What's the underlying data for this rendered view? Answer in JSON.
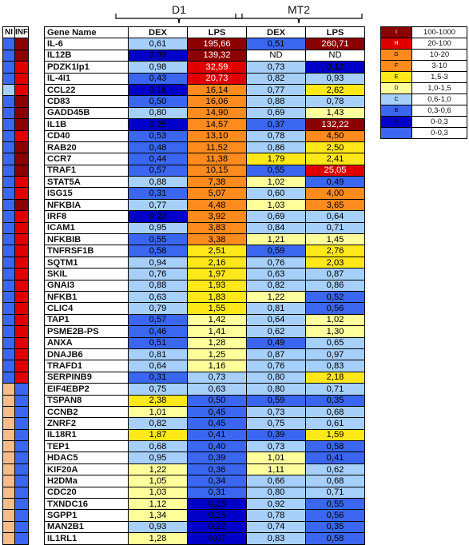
{
  "groups": {
    "d1": "D1",
    "mt2": "MT2"
  },
  "headers": {
    "ni": "NI",
    "inf": "INF",
    "gene": "Gene Name",
    "dex": "DEX",
    "lps": "LPS",
    "mt2_dex": "DEX",
    "mt2_lps": "LPS"
  },
  "colors": {
    "dark_red": "#8b0000",
    "red": "#e00000",
    "orange": "#ff8a1e",
    "yellow": "#ffe81a",
    "light_yellow": "#ffff9c",
    "light_blue": "#a6cffa",
    "blue": "#3a66f0",
    "dark_blue": "#0000c8",
    "peach": "#f8bc8a"
  },
  "legend": [
    {
      "code": "I",
      "range": "100-1000",
      "color": "dkred"
    },
    {
      "code": "H",
      "range": "20-100",
      "color": "red"
    },
    {
      "code": "G",
      "range": "10-20",
      "color": "orange"
    },
    {
      "code": "F",
      "range": "3-10",
      "color": "orange"
    },
    {
      "code": "E",
      "range": "1,5-3",
      "color": "yellow"
    },
    {
      "code": "D",
      "range": "1,0-1,5",
      "color": "ltyellow"
    },
    {
      "code": "C",
      "range": "0,6-1,0",
      "color": "ltblue"
    },
    {
      "code": "B",
      "range": "0,3-0,6",
      "color": "blue"
    },
    {
      "code": "A",
      "range": "0-0,3",
      "color": "dkblue"
    },
    {
      "code": "",
      "range": "0-0,3",
      "color": "blue"
    }
  ],
  "rows": [
    {
      "gene": "IL-6",
      "ni": "blue",
      "inf": "dkred",
      "d1_dex": "0,61",
      "d1_dex_c": "ltblue",
      "d1_lps": "195,66",
      "d1_lps_c": "dkred",
      "mt2_dex": "0,51",
      "mt2_dex_c": "blue",
      "mt2_lps": "260,71",
      "mt2_lps_c": "dkred"
    },
    {
      "gene": "IL12B",
      "ni": "blue",
      "inf": "dkred",
      "d1_dex": "0,09",
      "d1_dex_c": "dkblue",
      "d1_lps": "139,32",
      "d1_lps_c": "dkred",
      "mt2_dex": "ND",
      "mt2_dex_c": "white",
      "mt2_lps": "ND",
      "mt2_lps_c": "white"
    },
    {
      "gene": "PDZK1Ip1",
      "ni": "blue",
      "inf": "red",
      "d1_dex": "0,98",
      "d1_dex_c": "ltblue",
      "d1_lps": "32,59",
      "d1_lps_c": "red",
      "mt2_dex": "0,73",
      "mt2_dex_c": "ltblue",
      "mt2_lps": "0,12",
      "mt2_lps_c": "dkblue"
    },
    {
      "gene": "IL-4I1",
      "ni": "blue",
      "inf": "red",
      "d1_dex": "0,43",
      "d1_dex_c": "blue",
      "d1_lps": "20,73",
      "d1_lps_c": "red",
      "mt2_dex": "0,82",
      "mt2_dex_c": "ltblue",
      "mt2_lps": "0,93",
      "mt2_lps_c": "ltblue"
    },
    {
      "gene": "CCL22",
      "ni": "ltblue",
      "inf": "red",
      "d1_dex": "0,18",
      "d1_dex_c": "dkblue",
      "d1_lps": "16,14",
      "d1_lps_c": "orange",
      "mt2_dex": "0,77",
      "mt2_dex_c": "ltblue",
      "mt2_lps": "2,62",
      "mt2_lps_c": "yellow"
    },
    {
      "gene": "CD83",
      "ni": "blue",
      "inf": "dkred",
      "d1_dex": "0,50",
      "d1_dex_c": "blue",
      "d1_lps": "16,06",
      "d1_lps_c": "orange",
      "mt2_dex": "0,88",
      "mt2_dex_c": "ltblue",
      "mt2_lps": "0,78",
      "mt2_lps_c": "ltblue"
    },
    {
      "gene": "GADD45B",
      "ni": "blue",
      "inf": "dkred",
      "d1_dex": "0,80",
      "d1_dex_c": "ltblue",
      "d1_lps": "14,90",
      "d1_lps_c": "orange",
      "mt2_dex": "0,69",
      "mt2_dex_c": "ltblue",
      "mt2_lps": "1,43",
      "mt2_lps_c": "ltyellow"
    },
    {
      "gene": "IL1B",
      "ni": "blue",
      "inf": "dkred",
      "d1_dex": "0,25",
      "d1_dex_c": "dkblue",
      "d1_lps": "14,57",
      "d1_lps_c": "orange",
      "mt2_dex": "0,37",
      "mt2_dex_c": "blue",
      "mt2_lps": "132,22",
      "mt2_lps_c": "dkred"
    },
    {
      "gene": "CD40",
      "ni": "blue",
      "inf": "red",
      "d1_dex": "0,53",
      "d1_dex_c": "blue",
      "d1_lps": "13,10",
      "d1_lps_c": "orange",
      "mt2_dex": "0,78",
      "mt2_dex_c": "ltblue",
      "mt2_lps": "4,50",
      "mt2_lps_c": "orange"
    },
    {
      "gene": "RAB20",
      "ni": "blue",
      "inf": "dkred",
      "d1_dex": "0,48",
      "d1_dex_c": "blue",
      "d1_lps": "11,52",
      "d1_lps_c": "orange",
      "mt2_dex": "0,86",
      "mt2_dex_c": "ltblue",
      "mt2_lps": "2,50",
      "mt2_lps_c": "yellow"
    },
    {
      "gene": "CCR7",
      "ni": "blue",
      "inf": "dkred",
      "d1_dex": "0,44",
      "d1_dex_c": "blue",
      "d1_lps": "11,38",
      "d1_lps_c": "orange",
      "mt2_dex": "1,79",
      "mt2_dex_c": "yellow",
      "mt2_lps": "2,41",
      "mt2_lps_c": "yellow"
    },
    {
      "gene": "TRAF1",
      "ni": "blue",
      "inf": "dkred",
      "d1_dex": "0,57",
      "d1_dex_c": "blue",
      "d1_lps": "10,15",
      "d1_lps_c": "orange",
      "mt2_dex": "0,55",
      "mt2_dex_c": "blue",
      "mt2_lps": "25,05",
      "mt2_lps_c": "red"
    },
    {
      "gene": "STAT5A",
      "ni": "blue",
      "inf": "red",
      "d1_dex": "0,88",
      "d1_dex_c": "ltblue",
      "d1_lps": "7,38",
      "d1_lps_c": "orange",
      "mt2_dex": "1,02",
      "mt2_dex_c": "ltyellow",
      "mt2_lps": "0,49",
      "mt2_lps_c": "blue"
    },
    {
      "gene": "ISG15",
      "ni": "blue",
      "inf": "red",
      "d1_dex": "0,31",
      "d1_dex_c": "blue",
      "d1_lps": "5,07",
      "d1_lps_c": "orange",
      "mt2_dex": "0,60",
      "mt2_dex_c": "ltblue",
      "mt2_lps": "4,00",
      "mt2_lps_c": "orange"
    },
    {
      "gene": "NFKBIA",
      "ni": "blue",
      "inf": "dkred",
      "d1_dex": "0,77",
      "d1_dex_c": "ltblue",
      "d1_lps": "4,48",
      "d1_lps_c": "orange",
      "mt2_dex": "1,03",
      "mt2_dex_c": "ltyellow",
      "mt2_lps": "3,65",
      "mt2_lps_c": "orange"
    },
    {
      "gene": "IRF8",
      "ni": "blue",
      "inf": "red",
      "d1_dex": "0,23",
      "d1_dex_c": "dkblue",
      "d1_lps": "3,92",
      "d1_lps_c": "orange",
      "mt2_dex": "0,69",
      "mt2_dex_c": "ltblue",
      "mt2_lps": "0,64",
      "mt2_lps_c": "ltblue"
    },
    {
      "gene": "ICAM1",
      "ni": "blue",
      "inf": "red",
      "d1_dex": "0,95",
      "d1_dex_c": "ltblue",
      "d1_lps": "3,83",
      "d1_lps_c": "orange",
      "mt2_dex": "0,84",
      "mt2_dex_c": "ltblue",
      "mt2_lps": "0,71",
      "mt2_lps_c": "ltblue"
    },
    {
      "gene": "NFKBIB",
      "ni": "blue",
      "inf": "red",
      "d1_dex": "0,55",
      "d1_dex_c": "blue",
      "d1_lps": "3,38",
      "d1_lps_c": "orange",
      "mt2_dex": "1,21",
      "mt2_dex_c": "ltyellow",
      "mt2_lps": "1,45",
      "mt2_lps_c": "ltyellow"
    },
    {
      "gene": "TNFRSF1B",
      "ni": "blue",
      "inf": "red",
      "d1_dex": "0,58",
      "d1_dex_c": "blue",
      "d1_lps": "2,51",
      "d1_lps_c": "yellow",
      "mt2_dex": "0,59",
      "mt2_dex_c": "blue",
      "mt2_lps": "2,76",
      "mt2_lps_c": "yellow"
    },
    {
      "gene": "SQTM1",
      "ni": "blue",
      "inf": "red",
      "d1_dex": "0,94",
      "d1_dex_c": "ltblue",
      "d1_lps": "2,16",
      "d1_lps_c": "yellow",
      "mt2_dex": "0,76",
      "mt2_dex_c": "ltblue",
      "mt2_lps": "2,03",
      "mt2_lps_c": "yellow"
    },
    {
      "gene": "SKIL",
      "ni": "blue",
      "inf": "red",
      "d1_dex": "0,76",
      "d1_dex_c": "ltblue",
      "d1_lps": "1,97",
      "d1_lps_c": "yellow",
      "mt2_dex": "0,63",
      "mt2_dex_c": "ltblue",
      "mt2_lps": "0,87",
      "mt2_lps_c": "ltblue"
    },
    {
      "gene": "GNAI3",
      "ni": "blue",
      "inf": "red",
      "d1_dex": "0,88",
      "d1_dex_c": "ltblue",
      "d1_lps": "1,93",
      "d1_lps_c": "yellow",
      "mt2_dex": "0,82",
      "mt2_dex_c": "ltblue",
      "mt2_lps": "0,86",
      "mt2_lps_c": "ltblue"
    },
    {
      "gene": "NFKB1",
      "ni": "blue",
      "inf": "red",
      "d1_dex": "0,63",
      "d1_dex_c": "ltblue",
      "d1_lps": "1,83",
      "d1_lps_c": "yellow",
      "mt2_dex": "1,22",
      "mt2_dex_c": "ltyellow",
      "mt2_lps": "0,52",
      "mt2_lps_c": "blue"
    },
    {
      "gene": "CLIC4",
      "ni": "blue",
      "inf": "red",
      "d1_dex": "0,79",
      "d1_dex_c": "ltblue",
      "d1_lps": "1,55",
      "d1_lps_c": "yellow",
      "mt2_dex": "0,81",
      "mt2_dex_c": "ltblue",
      "mt2_lps": "0,56",
      "mt2_lps_c": "blue"
    },
    {
      "gene": "TAP1",
      "ni": "blue",
      "inf": "red",
      "d1_dex": "0,57",
      "d1_dex_c": "blue",
      "d1_lps": "1,42",
      "d1_lps_c": "ltyellow",
      "mt2_dex": "0,64",
      "mt2_dex_c": "ltblue",
      "mt2_lps": "1,02",
      "mt2_lps_c": "ltyellow"
    },
    {
      "gene": "PSME2B-PS",
      "ni": "blue",
      "inf": "red",
      "d1_dex": "0,46",
      "d1_dex_c": "blue",
      "d1_lps": "1,41",
      "d1_lps_c": "ltyellow",
      "mt2_dex": "0,62",
      "mt2_dex_c": "ltblue",
      "mt2_lps": "1,30",
      "mt2_lps_c": "ltyellow"
    },
    {
      "gene": "ANXA",
      "ni": "blue",
      "inf": "red",
      "d1_dex": "0,51",
      "d1_dex_c": "blue",
      "d1_lps": "1,28",
      "d1_lps_c": "ltyellow",
      "mt2_dex": "0,49",
      "mt2_dex_c": "blue",
      "mt2_lps": "0,65",
      "mt2_lps_c": "ltblue"
    },
    {
      "gene": "DNAJB6",
      "ni": "blue",
      "inf": "red",
      "d1_dex": "0,81",
      "d1_dex_c": "ltblue",
      "d1_lps": "1,25",
      "d1_lps_c": "ltyellow",
      "mt2_dex": "0,87",
      "mt2_dex_c": "ltblue",
      "mt2_lps": "0,97",
      "mt2_lps_c": "ltblue"
    },
    {
      "gene": "TRAFD1",
      "ni": "blue",
      "inf": "red",
      "d1_dex": "0,64",
      "d1_dex_c": "ltblue",
      "d1_lps": "1,16",
      "d1_lps_c": "ltyellow",
      "mt2_dex": "0,76",
      "mt2_dex_c": "ltblue",
      "mt2_lps": "0,83",
      "mt2_lps_c": "ltblue"
    },
    {
      "gene": "SERPINB9",
      "ni": "blue",
      "inf": "red",
      "d1_dex": "0,31",
      "d1_dex_c": "blue",
      "d1_lps": "0,73",
      "d1_lps_c": "ltblue",
      "mt2_dex": "0,80",
      "mt2_dex_c": "ltblue",
      "mt2_lps": "2,18",
      "mt2_lps_c": "yellow"
    },
    {
      "gene": "EIF4EBP2",
      "ni": "peach",
      "inf": "blue",
      "d1_dex": "0,75",
      "d1_dex_c": "ltblue",
      "d1_lps": "0,63",
      "d1_lps_c": "ltblue",
      "mt2_dex": "0,80",
      "mt2_dex_c": "ltblue",
      "mt2_lps": "0,71",
      "mt2_lps_c": "ltblue"
    },
    {
      "gene": "TSPAN8",
      "ni": "peach",
      "inf": "blue",
      "d1_dex": "2,38",
      "d1_dex_c": "yellow",
      "d1_lps": "0,50",
      "d1_lps_c": "blue",
      "mt2_dex": "0,59",
      "mt2_dex_c": "blue",
      "mt2_lps": "0,35",
      "mt2_lps_c": "blue"
    },
    {
      "gene": "CCNB2",
      "ni": "peach",
      "inf": "blue",
      "d1_dex": "1,01",
      "d1_dex_c": "ltyellow",
      "d1_lps": "0,45",
      "d1_lps_c": "blue",
      "mt2_dex": "0,73",
      "mt2_dex_c": "ltblue",
      "mt2_lps": "0,68",
      "mt2_lps_c": "ltblue"
    },
    {
      "gene": "ZNRF2",
      "ni": "peach",
      "inf": "blue",
      "d1_dex": "0,82",
      "d1_dex_c": "ltblue",
      "d1_lps": "0,45",
      "d1_lps_c": "blue",
      "mt2_dex": "0,75",
      "mt2_dex_c": "ltblue",
      "mt2_lps": "0,61",
      "mt2_lps_c": "ltblue"
    },
    {
      "gene": "IL18R1",
      "ni": "peach",
      "inf": "blue",
      "d1_dex": "1,87",
      "d1_dex_c": "yellow",
      "d1_lps": "0,41",
      "d1_lps_c": "blue",
      "mt2_dex": "0,39",
      "mt2_dex_c": "blue",
      "mt2_lps": "1,59",
      "mt2_lps_c": "yellow"
    },
    {
      "gene": "TEP1",
      "ni": "peach",
      "inf": "blue",
      "d1_dex": "0,68",
      "d1_dex_c": "ltblue",
      "d1_lps": "0,40",
      "d1_lps_c": "blue",
      "mt2_dex": "0,73",
      "mt2_dex_c": "ltblue",
      "mt2_lps": "0,58",
      "mt2_lps_c": "blue"
    },
    {
      "gene": "HDAC5",
      "ni": "peach",
      "inf": "blue",
      "d1_dex": "0,95",
      "d1_dex_c": "ltblue",
      "d1_lps": "0,39",
      "d1_lps_c": "blue",
      "mt2_dex": "1,01",
      "mt2_dex_c": "ltyellow",
      "mt2_lps": "0,41",
      "mt2_lps_c": "blue"
    },
    {
      "gene": "KIF20A",
      "ni": "peach",
      "inf": "blue",
      "d1_dex": "1,22",
      "d1_dex_c": "ltyellow",
      "d1_lps": "0,36",
      "d1_lps_c": "blue",
      "mt2_dex": "1,11",
      "mt2_dex_c": "ltyellow",
      "mt2_lps": "0,62",
      "mt2_lps_c": "ltblue"
    },
    {
      "gene": "H2DMa",
      "ni": "peach",
      "inf": "blue",
      "d1_dex": "1,05",
      "d1_dex_c": "ltyellow",
      "d1_lps": "0,34",
      "d1_lps_c": "blue",
      "mt2_dex": "0,66",
      "mt2_dex_c": "ltblue",
      "mt2_lps": "0,68",
      "mt2_lps_c": "ltblue"
    },
    {
      "gene": "CDC20",
      "ni": "peach",
      "inf": "blue",
      "d1_dex": "1,03",
      "d1_dex_c": "ltyellow",
      "d1_lps": "0,31",
      "d1_lps_c": "blue",
      "mt2_dex": "0,80",
      "mt2_dex_c": "ltblue",
      "mt2_lps": "0,71",
      "mt2_lps_c": "ltblue"
    },
    {
      "gene": "TXNDC16",
      "ni": "peach",
      "inf": "blue",
      "d1_dex": "1,12",
      "d1_dex_c": "ltyellow",
      "d1_lps": "0,28",
      "d1_lps_c": "dkblue",
      "mt2_dex": "0,92",
      "mt2_dex_c": "ltblue",
      "mt2_lps": "0,55",
      "mt2_lps_c": "blue"
    },
    {
      "gene": "SGPP1",
      "ni": "peach",
      "inf": "blue",
      "d1_dex": "1,34",
      "d1_dex_c": "ltyellow",
      "d1_lps": "0,25",
      "d1_lps_c": "dkblue",
      "mt2_dex": "0,78",
      "mt2_dex_c": "ltblue",
      "mt2_lps": "0,56",
      "mt2_lps_c": "blue"
    },
    {
      "gene": "MAN2B1",
      "ni": "peach",
      "inf": "blue",
      "d1_dex": "0,93",
      "d1_dex_c": "ltblue",
      "d1_lps": "0,22",
      "d1_lps_c": "dkblue",
      "mt2_dex": "0,74",
      "mt2_dex_c": "ltblue",
      "mt2_lps": "0,35",
      "mt2_lps_c": "blue"
    },
    {
      "gene": "IL1RL1",
      "ni": "peach",
      "inf": "blue",
      "d1_dex": "1,28",
      "d1_dex_c": "ltyellow",
      "d1_lps": "0,07",
      "d1_lps_c": "dkblue",
      "mt2_dex": "0,83",
      "mt2_dex_c": "ltblue",
      "mt2_lps": "0,58",
      "mt2_lps_c": "blue"
    }
  ]
}
